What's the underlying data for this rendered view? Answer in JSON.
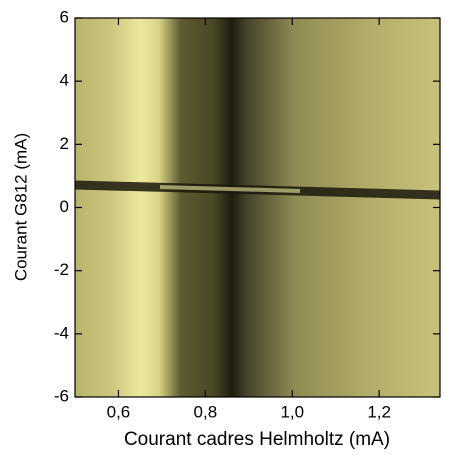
{
  "chart_data": {
    "type": "heatmap",
    "xlabel": "Courant cadres Helmholtz (mA)",
    "ylabel": "Courant G812 (mA)",
    "xlim": [
      0.5,
      1.34
    ],
    "ylim": [
      -6,
      6
    ],
    "xticks": [
      {
        "value": 0.6,
        "label": "0,6"
      },
      {
        "value": 0.8,
        "label": "0,8"
      },
      {
        "value": 1.0,
        "label": "1,0"
      },
      {
        "value": 1.2,
        "label": "1,2"
      }
    ],
    "yticks": [
      -6,
      -4,
      -2,
      0,
      2,
      4,
      6
    ]
  }
}
